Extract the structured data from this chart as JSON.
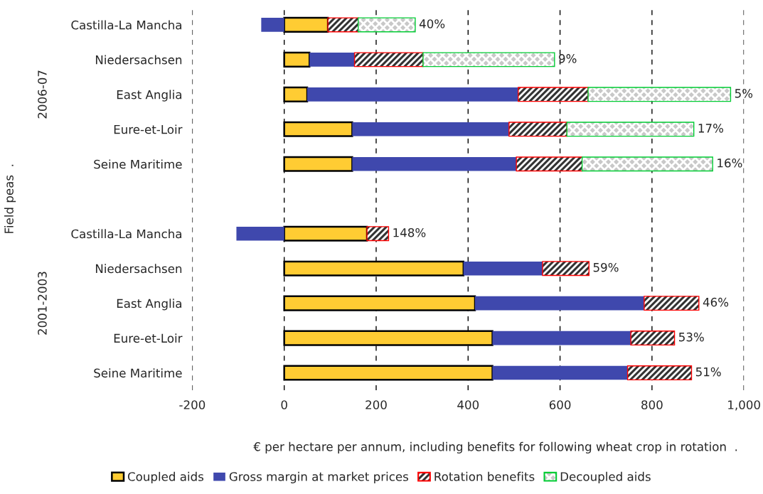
{
  "chart_data": {
    "type": "bar",
    "orientation": "horizontal",
    "stacked": true,
    "categories": [
      "Castilla-La Mancha",
      "Niedersachsen",
      "East Anglia",
      "Eure-et-Loir",
      "Seine Maritime",
      null,
      "Castilla-La Mancha",
      "Niedersachsen",
      "East Anglia",
      "Eure-et-Loir",
      "Seine Maritime"
    ],
    "series": [
      {
        "name": "Coupled aids",
        "color": "#ffcc33",
        "values": [
          95,
          55,
          50,
          148,
          148,
          null,
          180,
          390,
          415,
          453,
          453
        ]
      },
      {
        "name": "Gross margin at market prices",
        "color": "#3f48ad",
        "values": [
          -50,
          98,
          459,
          341,
          357,
          null,
          -104,
          172,
          368,
          301,
          294
        ]
      },
      {
        "name": "Rotation benefits",
        "color": "#ff0000",
        "values": [
          66,
          149,
          152,
          126,
          143,
          null,
          47,
          101,
          119,
          95,
          139
        ]
      },
      {
        "name": "Decoupled aids",
        "color": "#00cc33",
        "values": [
          124,
          286,
          310,
          276,
          284,
          null,
          null,
          null,
          null,
          null,
          null
        ]
      }
    ],
    "xlim": [
      -200,
      1000
    ],
    "xticks": [
      -200,
      0,
      200,
      400,
      600,
      800,
      {
        "value": 1000,
        "label": "1,000"
      }
    ],
    "xlabel": "€ per hectare per annum, including benefits for following wheat crop in rotation  .",
    "ylabel": "Field peas  .",
    "annotations": [
      "2006-07",
      "2001-2003",
      "40%",
      "9%",
      "5%",
      "17%",
      "16%",
      "148%",
      "59%",
      "46%",
      "53%",
      "51%"
    ],
    "grid": "x",
    "legend": "bottom"
  }
}
